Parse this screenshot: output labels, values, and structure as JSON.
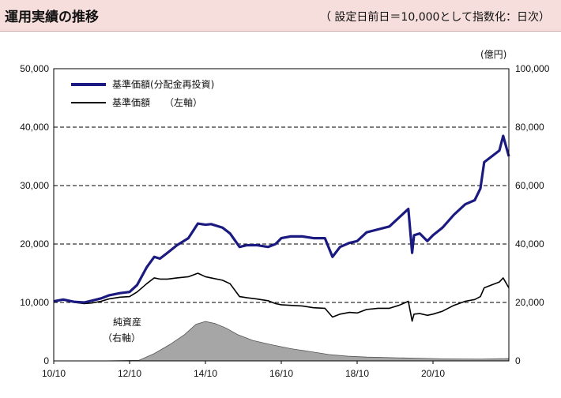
{
  "header": {
    "title": "運用実績の推移",
    "note": "（ 設定日前日＝10,000として指数化：日次）"
  },
  "chart_data": {
    "type": "line",
    "x_range": [
      2010.75,
      2022.75
    ],
    "x_ticks": [
      {
        "x": 2010.75,
        "label": "10/10"
      },
      {
        "x": 2012.75,
        "label": "12/10"
      },
      {
        "x": 2014.75,
        "label": "14/10"
      },
      {
        "x": 2016.75,
        "label": "16/10"
      },
      {
        "x": 2018.75,
        "label": "18/10"
      },
      {
        "x": 2020.75,
        "label": "20/10"
      }
    ],
    "y_left": {
      "range": [
        0,
        50000
      ],
      "ticks": [
        "0",
        "10,000",
        "20,000",
        "30,000",
        "40,000",
        "50,000"
      ],
      "tick_values": [
        0,
        10000,
        20000,
        30000,
        40000,
        50000
      ]
    },
    "y_right": {
      "range": [
        0,
        100000
      ],
      "unit": "(億円)",
      "ticks": [
        "0",
        "20,000",
        "40,000",
        "60,000",
        "80,000",
        "100,000"
      ],
      "tick_values": [
        0,
        20000,
        40000,
        60000,
        80000,
        100000
      ]
    },
    "gridlines": [
      10000,
      20000,
      30000,
      40000
    ],
    "legend": {
      "position": "top-left",
      "entries": [
        "基準価額(分配金再投資)",
        "基準価額　　（左軸）"
      ]
    },
    "annotation": [
      "純資産",
      "（右軸）"
    ],
    "colors": {
      "reinvested": "#1a1a80",
      "nav": "#000000",
      "assets_fill": "#a6a6a6"
    },
    "series": [
      {
        "name": "基準価額(分配金再投資)",
        "axis": "left",
        "x": [
          2010.75,
          2011.0,
          2011.3,
          2011.55,
          2011.75,
          2012.0,
          2012.2,
          2012.5,
          2012.75,
          2012.95,
          2013.2,
          2013.4,
          2013.55,
          2013.75,
          2014.0,
          2014.3,
          2014.55,
          2014.75,
          2014.9,
          2015.2,
          2015.4,
          2015.65,
          2015.85,
          2016.1,
          2016.4,
          2016.6,
          2016.75,
          2017.0,
          2017.3,
          2017.6,
          2017.9,
          2018.1,
          2018.3,
          2018.55,
          2018.75,
          2019.0,
          2019.3,
          2019.6,
          2019.85,
          2020.1,
          2020.2,
          2020.25,
          2020.4,
          2020.6,
          2020.75,
          2021.0,
          2021.3,
          2021.6,
          2021.85,
          2022.0,
          2022.1,
          2022.3,
          2022.5,
          2022.6,
          2022.75
        ],
        "y": [
          10200,
          10500,
          10100,
          10000,
          10300,
          10700,
          11200,
          11600,
          11800,
          13000,
          16000,
          17800,
          17500,
          18500,
          19800,
          21000,
          23500,
          23300,
          23400,
          22800,
          21800,
          19500,
          19800,
          19800,
          19500,
          20000,
          21000,
          21300,
          21300,
          21000,
          21000,
          17800,
          19500,
          20200,
          20500,
          22000,
          22500,
          23000,
          24500,
          26000,
          18500,
          21500,
          21800,
          20500,
          21500,
          22800,
          25000,
          26800,
          27500,
          29500,
          34000,
          35000,
          36000,
          38500,
          35000
        ]
      },
      {
        "name": "基準価額",
        "axis": "left",
        "x": [
          2010.75,
          2011.0,
          2011.3,
          2011.55,
          2011.75,
          2012.0,
          2012.2,
          2012.5,
          2012.75,
          2012.95,
          2013.2,
          2013.4,
          2013.55,
          2013.75,
          2014.0,
          2014.3,
          2014.55,
          2014.75,
          2014.9,
          2015.2,
          2015.4,
          2015.65,
          2015.85,
          2016.1,
          2016.4,
          2016.6,
          2016.75,
          2017.0,
          2017.3,
          2017.6,
          2017.9,
          2018.1,
          2018.3,
          2018.55,
          2018.75,
          2019.0,
          2019.3,
          2019.6,
          2019.85,
          2020.1,
          2020.2,
          2020.25,
          2020.4,
          2020.6,
          2020.75,
          2021.0,
          2021.3,
          2021.6,
          2021.85,
          2022.0,
          2022.1,
          2022.3,
          2022.5,
          2022.6,
          2022.75
        ],
        "y": [
          10200,
          10400,
          10000,
          9800,
          9900,
          10200,
          10600,
          10900,
          11000,
          11800,
          13200,
          14200,
          14000,
          14000,
          14200,
          14400,
          15000,
          14400,
          14200,
          13800,
          13200,
          11000,
          10800,
          10600,
          10300,
          9800,
          9600,
          9500,
          9400,
          9100,
          9000,
          7500,
          8000,
          8300,
          8200,
          8800,
          9000,
          9000,
          9500,
          10200,
          6800,
          8000,
          8100,
          7800,
          8000,
          8500,
          9500,
          10200,
          10500,
          11000,
          12500,
          13000,
          13500,
          14200,
          12500
        ]
      },
      {
        "name": "純資産",
        "axis": "right",
        "fill": true,
        "x": [
          2010.75,
          2012.0,
          2013.0,
          2013.4,
          2013.8,
          2014.2,
          2014.5,
          2014.75,
          2015.0,
          2015.3,
          2015.6,
          2016.0,
          2016.5,
          2017.0,
          2017.5,
          2018.0,
          2018.5,
          2019.0,
          2020.0,
          2021.0,
          2022.0,
          2022.75
        ],
        "y": [
          0,
          0,
          200,
          2500,
          5500,
          9000,
          12500,
          13500,
          12800,
          11200,
          9000,
          7000,
          5500,
          4200,
          3200,
          2200,
          1600,
          1300,
          1000,
          700,
          600,
          800
        ]
      }
    ]
  }
}
